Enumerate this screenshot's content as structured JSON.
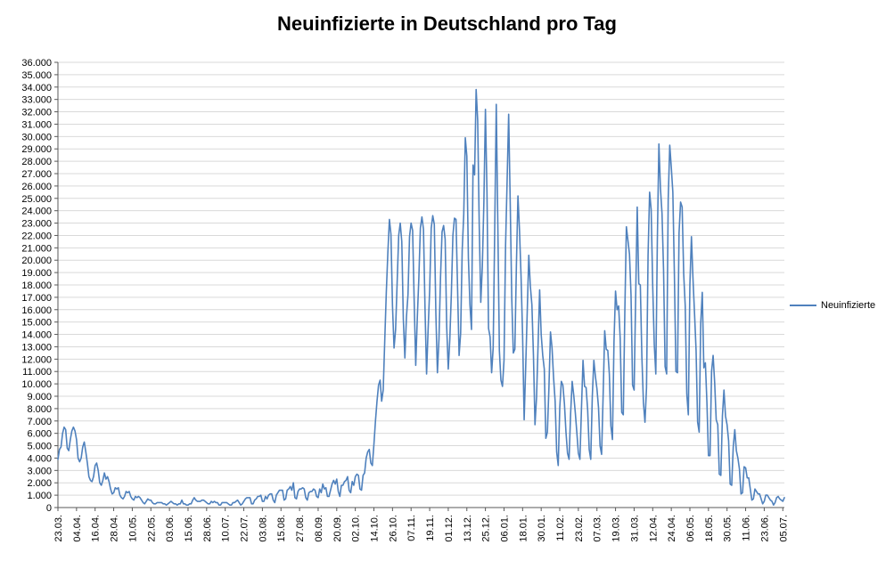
{
  "page": {
    "background": "#ffffff"
  },
  "chart_data": {
    "type": "line",
    "title": "Neuinfizierte in Deutschland pro Tag",
    "xlabel": "",
    "ylabel": "",
    "ylim": [
      0,
      36000
    ],
    "y_tick_step": 1000,
    "y_label_format": "de-thousands",
    "grid": "horizontal",
    "legend_position": "right",
    "x_tick_interval_days": 12,
    "x_tick_labels": [
      "23.03.",
      "04.04.",
      "16.04.",
      "28.04.",
      "10.05.",
      "22.05.",
      "03.06.",
      "15.06.",
      "28.06.",
      "10.07.",
      "22.07.",
      "03.08.",
      "15.08.",
      "27.08.",
      "08.09.",
      "20.09.",
      "02.10.",
      "14.10.",
      "26.10.",
      "07.11.",
      "19.11.",
      "01.12.",
      "13.12.",
      "25.12.",
      "06.01.",
      "18.01.",
      "30.01.",
      "11.02.",
      "23.02.",
      "07.03.",
      "19.03.",
      "31.03.",
      "12.04.",
      "24.04.",
      "06.05.",
      "18.05.",
      "30.05.",
      "11.06.",
      "23.06.",
      "05.07."
    ],
    "colors": {
      "line": "#4F81BD",
      "gridline": "#D9D9D9",
      "axis": "#595959",
      "text": "#000000"
    },
    "series": [
      {
        "name": "Neuinfizierte",
        "color": "#4F81BD",
        "values": [
          3900,
          4700,
          4900,
          6000,
          6500,
          6300,
          4800,
          4600,
          5500,
          6200,
          6500,
          6200,
          5500,
          4000,
          3700,
          4000,
          4900,
          5300,
          4500,
          3600,
          2500,
          2200,
          2100,
          2500,
          3400,
          3600,
          3000,
          2000,
          1800,
          2200,
          2800,
          2300,
          2500,
          2100,
          1500,
          1100,
          1200,
          1600,
          1500,
          1600,
          1000,
          800,
          700,
          900,
          1300,
          1200,
          1300,
          900,
          700,
          600,
          900,
          800,
          900,
          800,
          600,
          400,
          300,
          500,
          700,
          600,
          600,
          400,
          300,
          300,
          400,
          400,
          400,
          400,
          300,
          300,
          200,
          300,
          400,
          500,
          400,
          300,
          300,
          200,
          300,
          300,
          600,
          300,
          300,
          200,
          200,
          300,
          300,
          600,
          800,
          600,
          500,
          500,
          500,
          600,
          600,
          500,
          400,
          300,
          300,
          500,
          400,
          500,
          400,
          400,
          200,
          200,
          400,
          400,
          400,
          400,
          300,
          200,
          200,
          400,
          400,
          500,
          600,
          400,
          200,
          300,
          500,
          700,
          800,
          800,
          800,
          300,
          300,
          600,
          700,
          900,
          900,
          1000,
          500,
          500,
          900,
          700,
          1000,
          1100,
          1100,
          600,
          400,
          1000,
          1200,
          1400,
          1400,
          1400,
          600,
          700,
          1400,
          1500,
          1700,
          1400,
          2000,
          800,
          700,
          1300,
          1500,
          1500,
          1600,
          1500,
          800,
          600,
          1200,
          1300,
          1300,
          1500,
          1400,
          900,
          800,
          1500,
          1200,
          1900,
          1500,
          1600,
          900,
          900,
          1400,
          1900,
          2200,
          1900,
          2300,
          1300,
          900,
          1800,
          1800,
          2100,
          2200,
          2500,
          1400,
          1200,
          2100,
          1800,
          2500,
          2700,
          2600,
          1500,
          1400,
          2600,
          2800,
          4000,
          4500,
          4700,
          3600,
          3400,
          5100,
          7000,
          8600,
          9900,
          10300,
          8600,
          9500,
          13500,
          17400,
          20600,
          23300,
          22100,
          16300,
          12900,
          14400,
          18200,
          22000,
          23000,
          21500,
          15200,
          12100,
          15400,
          17200,
          21900,
          23000,
          22400,
          16700,
          11500,
          15300,
          18500,
          22600,
          23500,
          22500,
          16100,
          10800,
          14400,
          17600,
          22600,
          23600,
          22900,
          15700,
          10900,
          13600,
          18600,
          22300,
          22800,
          21700,
          14600,
          11200,
          13600,
          17300,
          22000,
          23400,
          23300,
          17800,
          12300,
          14100,
          20800,
          23700,
          29900,
          28400,
          20200,
          16400,
          14400,
          27700,
          26900,
          33800,
          31300,
          22800,
          16600,
          19500,
          24700,
          32200,
          25500,
          14500,
          13800,
          10900,
          12900,
          22500,
          32600,
          22900,
          12700,
          10300,
          9800,
          11900,
          21200,
          26400,
          31800,
          24700,
          16900,
          12500,
          12800,
          19600,
          25200,
          22400,
          18700,
          13900,
          7100,
          11400,
          15900,
          20400,
          17900,
          16400,
          12300,
          6700,
          8900,
          13200,
          17600,
          14000,
          12300,
          11200,
          5600,
          6100,
          9700,
          14200,
          12900,
          10500,
          8600,
          4500,
          3400,
          8100,
          10200,
          9900,
          8400,
          6100,
          4400,
          3900,
          7600,
          10200,
          9100,
          7700,
          6100,
          4400,
          3900,
          8000,
          11900,
          9800,
          9700,
          7900,
          4700,
          3900,
          9000,
          11900,
          10600,
          9600,
          8100,
          5000,
          4300,
          9100,
          14300,
          12800,
          12700,
          10800,
          6600,
          5500,
          13400,
          17500,
          16000,
          16300,
          13700,
          7700,
          7500,
          15800,
          22700,
          21600,
          20500,
          17200,
          9900,
          9500,
          17100,
          24300,
          18100,
          18000,
          12200,
          8500,
          6900,
          9700,
          20400,
          25500,
          24100,
          17900,
          13200,
          10800,
          21700,
          29400,
          25800,
          23800,
          19200,
          11400,
          10800,
          24900,
          29300,
          27500,
          25500,
          18800,
          11000,
          10900,
          22200,
          24700,
          24300,
          18900,
          16300,
          9200,
          7500,
          18000,
          21900,
          18500,
          15700,
          12700,
          6900,
          6100,
          14900,
          17400,
          11300,
          11700,
          8500,
          4200,
          4200,
          11000,
          12300,
          10100,
          7100,
          6700,
          2700,
          2600,
          7400,
          9500,
          7400,
          6700,
          5400,
          1900,
          1800,
          4900,
          6300,
          4600,
          4000,
          3100,
          1100,
          1200,
          3300,
          3200,
          2400,
          2400,
          1500,
          600,
          700,
          1500,
          1300,
          1100,
          1100,
          700,
          300,
          500,
          1000,
          1000,
          800,
          600,
          500,
          200,
          400,
          800,
          900,
          700,
          600,
          500,
          800
        ]
      }
    ]
  }
}
